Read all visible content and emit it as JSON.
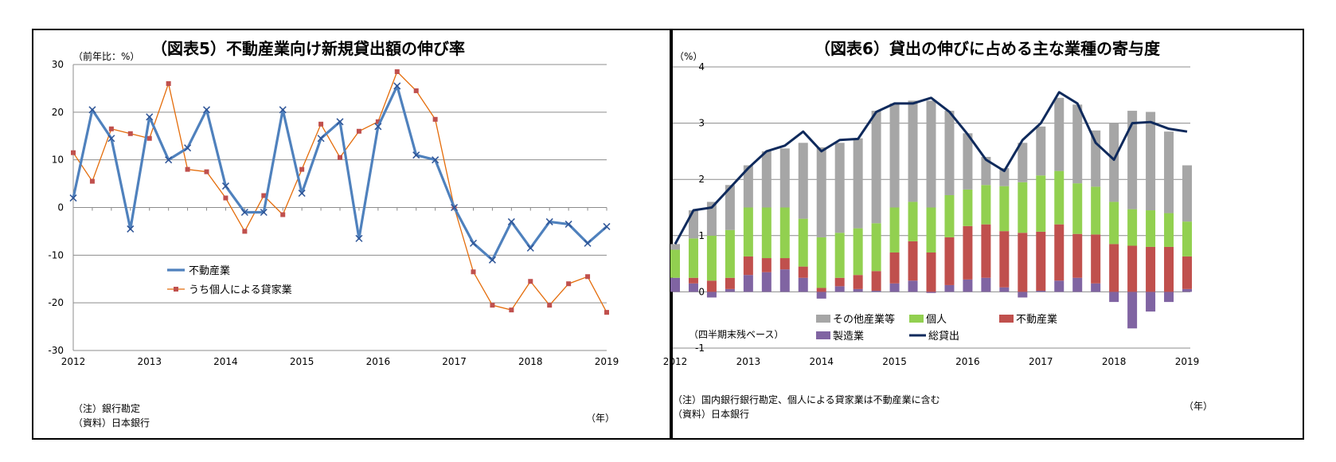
{
  "charts": [
    {
      "title": "（図表5）不動産業向け新規貸出額の伸び率",
      "unit_label": "（前年比：%）",
      "year_unit": "（年）",
      "notes": [
        "（注）銀行勘定",
        "（資料）日本銀行"
      ]
    },
    {
      "title": "（図表6）貸出の伸びに占める主な業種の寄与度",
      "unit_label": "（%）",
      "year_unit": "（年）",
      "basis_note": "（四半期末残ベース）",
      "notes": [
        "（注）国内銀行銀行勘定、個人による貸家業は不動産業に含む",
        "（資料）日本銀行"
      ]
    }
  ],
  "chart_data": [
    {
      "type": "line",
      "title": "（図表5）不動産業向け新規貸出額の伸び率",
      "ylabel": "（前年比：%）",
      "xlabel": "（年）",
      "ylim": [
        -30,
        30
      ],
      "yticks": [
        30,
        20,
        10,
        0,
        -10,
        -20,
        -30
      ],
      "xtick_labels": [
        "2012",
        "2013",
        "2014",
        "2015",
        "2016",
        "2017",
        "2018",
        "2019"
      ],
      "legend_position": "center-left",
      "grid": true,
      "series": [
        {
          "name": "不動産業",
          "color": "#4f81bd",
          "marker": "x",
          "x": [
            2012.0,
            2012.25,
            2012.5,
            2012.75,
            2013.0,
            2013.25,
            2013.5,
            2013.75,
            2014.0,
            2014.25,
            2014.5,
            2014.75,
            2015.0,
            2015.25,
            2015.5,
            2015.75,
            2016.0,
            2016.25,
            2016.5,
            2016.75,
            2017.0,
            2017.25,
            2017.5,
            2017.75,
            2018.0,
            2018.25,
            2018.5,
            2018.75,
            2019.0
          ],
          "values": [
            2,
            20.5,
            14.5,
            -4.5,
            19,
            10,
            12.5,
            20.5,
            4.5,
            -1,
            -1,
            20.5,
            3,
            14.5,
            18,
            -6.5,
            17,
            25.5,
            11,
            10,
            0,
            -7.5,
            -11,
            -3,
            -8.5,
            -3,
            -3.5,
            -7.5,
            -4
          ]
        },
        {
          "name": "うち個人による貸家業",
          "color": "#c0504d",
          "line_color": "#e46c0a",
          "marker": "square",
          "x": [
            2012.0,
            2012.25,
            2012.5,
            2012.75,
            2013.0,
            2013.25,
            2013.5,
            2013.75,
            2014.0,
            2014.25,
            2014.5,
            2014.75,
            2015.0,
            2015.25,
            2015.5,
            2015.75,
            2016.0,
            2016.25,
            2016.5,
            2016.75,
            2017.0,
            2017.25,
            2017.5,
            2017.75,
            2018.0,
            2018.25,
            2018.5,
            2018.75,
            2019.0
          ],
          "values": [
            11.5,
            5.5,
            16.5,
            15.5,
            14.5,
            26,
            8,
            7.5,
            2,
            -5,
            2.5,
            -1.5,
            8,
            17.5,
            10.5,
            16,
            18,
            28.5,
            24.5,
            18.5,
            0,
            -13.5,
            -20.5,
            -21.5,
            -15.5,
            -20.5,
            -16,
            -14.5,
            -22
          ]
        }
      ]
    },
    {
      "type": "bar",
      "title": "（図表6）貸出の伸びに占める主な業種の寄与度",
      "ylabel": "（%）",
      "xlabel": "（年）",
      "ylim": [
        -1,
        4
      ],
      "yticks": [
        4,
        3,
        2,
        1,
        0,
        -1
      ],
      "xtick_labels": [
        "2012",
        "2013",
        "2014",
        "2015",
        "2016",
        "2017",
        "2018",
        "2019"
      ],
      "stacked": true,
      "legend_position": "bottom",
      "grid": true,
      "x": [
        2012.0,
        2012.25,
        2012.5,
        2012.75,
        2013.0,
        2013.25,
        2013.5,
        2013.75,
        2014.0,
        2014.25,
        2014.5,
        2014.75,
        2015.0,
        2015.25,
        2015.5,
        2015.75,
        2016.0,
        2016.25,
        2016.5,
        2016.75,
        2017.0,
        2017.25,
        2017.5,
        2017.75,
        2018.0,
        2018.25,
        2018.5,
        2018.75,
        2019.0
      ],
      "series": [
        {
          "name": "製造業",
          "color": "#8064a2",
          "values": [
            0.25,
            0.15,
            -0.1,
            0.05,
            0.3,
            0.35,
            0.4,
            0.25,
            -0.12,
            0.1,
            0.05,
            0.02,
            0.15,
            0.2,
            -0.02,
            0.12,
            0.22,
            0.25,
            0.08,
            -0.1,
            0.02,
            0.2,
            0.25,
            0.15,
            -0.18,
            -0.65,
            -0.35,
            -0.18,
            0.05
          ]
        },
        {
          "name": "不動産業",
          "color": "#c0504d",
          "values": [
            0.0,
            0.1,
            0.2,
            0.2,
            0.33,
            0.25,
            0.2,
            0.2,
            0.07,
            0.15,
            0.25,
            0.35,
            0.55,
            0.7,
            0.7,
            0.85,
            0.95,
            0.95,
            1.0,
            1.05,
            1.05,
            1.0,
            0.78,
            0.87,
            0.85,
            0.82,
            0.8,
            0.8,
            0.58
          ]
        },
        {
          "name": "個人",
          "color": "#92d050",
          "values": [
            0.5,
            0.7,
            0.8,
            0.85,
            0.87,
            0.9,
            0.9,
            0.85,
            0.9,
            0.8,
            0.83,
            0.85,
            0.8,
            0.7,
            0.8,
            0.75,
            0.65,
            0.7,
            0.8,
            0.9,
            1.0,
            0.95,
            0.9,
            0.85,
            0.75,
            0.65,
            0.65,
            0.6,
            0.62
          ]
        },
        {
          "name": "その他産業等",
          "color": "#a6a6a6",
          "values": [
            0.1,
            0.5,
            0.6,
            0.8,
            0.75,
            1.0,
            1.05,
            1.35,
            1.6,
            1.6,
            1.6,
            2.0,
            1.85,
            1.8,
            1.9,
            1.5,
            1.0,
            0.5,
            0.32,
            0.7,
            0.87,
            1.3,
            1.4,
            1.0,
            1.4,
            1.75,
            1.75,
            1.45,
            1.0
          ]
        }
      ],
      "line_series": {
        "name": "総貸出",
        "color": "#0f2a5c",
        "values": [
          0.85,
          1.45,
          1.5,
          1.85,
          2.2,
          2.5,
          2.6,
          2.85,
          2.5,
          2.7,
          2.72,
          3.2,
          3.35,
          3.35,
          3.45,
          3.2,
          2.8,
          2.35,
          2.15,
          2.7,
          3.0,
          3.55,
          3.35,
          2.65,
          2.35,
          3.0,
          3.02,
          2.9,
          2.85
        ]
      }
    }
  ]
}
